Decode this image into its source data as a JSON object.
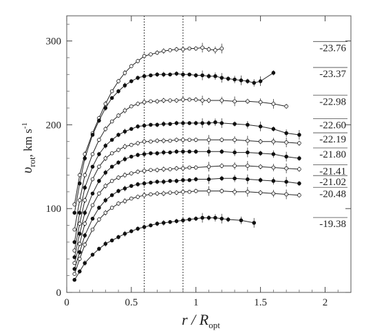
{
  "chart_data": {
    "type": "line",
    "xlabel": {
      "main": "r / R",
      "sub": "opt"
    },
    "ylabel": {
      "main": "υ",
      "sub": "rot",
      "unit": ", km s",
      "sup": "-1"
    },
    "xlim": [
      0,
      2.2
    ],
    "ylim": [
      0,
      330
    ],
    "xticks": [
      0,
      0.5,
      1,
      1.5,
      2
    ],
    "xtick_labels": [
      "0",
      "0.5",
      "1",
      "1.5",
      "2"
    ],
    "yticks": [
      0,
      100,
      200,
      300
    ],
    "ytick_labels": [
      "0",
      "100",
      "200",
      "300"
    ],
    "vlines": [
      0.6,
      0.9
    ],
    "grid": false,
    "series": [
      {
        "label": "-23.76",
        "marker": "open",
        "labelY": 292,
        "x": [
          0.06,
          0.1,
          0.14,
          0.2,
          0.25,
          0.3,
          0.35,
          0.4,
          0.45,
          0.5,
          0.55,
          0.6,
          0.65,
          0.7,
          0.75,
          0.8,
          0.85,
          0.9,
          0.95,
          1.0,
          1.05,
          1.1,
          1.15,
          1.2
        ],
        "y": [
          105,
          140,
          165,
          190,
          208,
          225,
          240,
          252,
          262,
          270,
          276,
          282,
          284,
          286,
          288,
          289,
          290,
          290,
          291,
          291,
          292,
          290,
          289,
          291
        ]
      },
      {
        "label": "-23.37",
        "marker": "filled",
        "labelY": 261,
        "x": [
          0.06,
          0.1,
          0.14,
          0.2,
          0.25,
          0.3,
          0.35,
          0.4,
          0.45,
          0.5,
          0.55,
          0.6,
          0.65,
          0.7,
          0.75,
          0.8,
          0.85,
          0.9,
          0.95,
          1.0,
          1.05,
          1.1,
          1.15,
          1.2,
          1.25,
          1.3,
          1.35,
          1.4,
          1.45,
          1.5,
          1.6
        ],
        "y": [
          95,
          130,
          160,
          188,
          205,
          220,
          232,
          240,
          247,
          252,
          256,
          258,
          259,
          260,
          260,
          260,
          261,
          260,
          260,
          259,
          259,
          258,
          258,
          256,
          255,
          254,
          253,
          252,
          250,
          252,
          262
        ]
      },
      {
        "label": "-22.98",
        "marker": "open",
        "labelY": 228,
        "x": [
          0.06,
          0.1,
          0.14,
          0.2,
          0.25,
          0.3,
          0.35,
          0.4,
          0.45,
          0.5,
          0.55,
          0.6,
          0.65,
          0.7,
          0.75,
          0.8,
          0.85,
          0.9,
          0.95,
          1.0,
          1.05,
          1.1,
          1.2,
          1.3,
          1.4,
          1.5,
          1.6,
          1.7
        ],
        "y": [
          75,
          110,
          140,
          165,
          182,
          195,
          204,
          211,
          217,
          222,
          225,
          227,
          228,
          228,
          229,
          229,
          229,
          230,
          230,
          230,
          229,
          229,
          229,
          228,
          228,
          227,
          225,
          222
        ]
      },
      {
        "label": "-22.60",
        "marker": "filled",
        "labelY": 200,
        "x": [
          0.06,
          0.1,
          0.14,
          0.2,
          0.25,
          0.3,
          0.35,
          0.4,
          0.45,
          0.5,
          0.55,
          0.6,
          0.65,
          0.7,
          0.75,
          0.8,
          0.85,
          0.9,
          0.95,
          1.0,
          1.05,
          1.1,
          1.15,
          1.2,
          1.3,
          1.4,
          1.5,
          1.6,
          1.7,
          1.8
        ],
        "y": [
          60,
          95,
          125,
          150,
          165,
          175,
          182,
          188,
          192,
          195,
          198,
          199,
          200,
          200,
          201,
          201,
          202,
          202,
          202,
          202,
          202,
          202,
          203,
          202,
          201,
          200,
          198,
          195,
          190,
          188
        ]
      },
      {
        "label": "-22.19",
        "marker": "open",
        "labelY": 183,
        "x": [
          0.06,
          0.1,
          0.14,
          0.2,
          0.25,
          0.3,
          0.35,
          0.4,
          0.45,
          0.5,
          0.55,
          0.6,
          0.65,
          0.7,
          0.75,
          0.8,
          0.85,
          0.9,
          0.95,
          1.0,
          1.1,
          1.2,
          1.3,
          1.4,
          1.5,
          1.6,
          1.7,
          1.8
        ],
        "y": [
          50,
          82,
          110,
          135,
          150,
          160,
          166,
          170,
          174,
          176,
          178,
          180,
          180,
          181,
          181,
          181,
          182,
          182,
          182,
          182,
          182,
          182,
          182,
          181,
          180,
          180,
          179,
          178
        ]
      },
      {
        "label": "-21.80",
        "marker": "filled",
        "labelY": 165,
        "x": [
          0.06,
          0.1,
          0.14,
          0.2,
          0.25,
          0.3,
          0.35,
          0.4,
          0.45,
          0.5,
          0.55,
          0.6,
          0.65,
          0.7,
          0.75,
          0.8,
          0.85,
          0.9,
          0.95,
          1.0,
          1.1,
          1.2,
          1.3,
          1.4,
          1.5,
          1.6,
          1.7,
          1.8
        ],
        "y": [
          42,
          70,
          95,
          118,
          133,
          143,
          150,
          155,
          159,
          162,
          164,
          165,
          166,
          166,
          167,
          167,
          168,
          168,
          168,
          168,
          168,
          168,
          167,
          167,
          166,
          165,
          162,
          160
        ]
      },
      {
        "label": "-21.41",
        "marker": "open",
        "labelY": 145,
        "x": [
          0.06,
          0.1,
          0.14,
          0.2,
          0.25,
          0.3,
          0.35,
          0.4,
          0.45,
          0.5,
          0.55,
          0.6,
          0.65,
          0.7,
          0.75,
          0.8,
          0.85,
          0.9,
          0.95,
          1.0,
          1.1,
          1.2,
          1.3,
          1.4,
          1.5,
          1.6,
          1.7,
          1.8
        ],
        "y": [
          35,
          58,
          82,
          104,
          118,
          127,
          133,
          137,
          140,
          142,
          144,
          145,
          146,
          146,
          147,
          147,
          148,
          148,
          149,
          149,
          150,
          151,
          151,
          151,
          150,
          149,
          148,
          147
        ]
      },
      {
        "label": "-21.02",
        "marker": "filled",
        "labelY": 132,
        "x": [
          0.06,
          0.1,
          0.14,
          0.2,
          0.25,
          0.3,
          0.35,
          0.4,
          0.45,
          0.5,
          0.55,
          0.6,
          0.65,
          0.7,
          0.75,
          0.8,
          0.85,
          0.9,
          0.95,
          1.0,
          1.1,
          1.2,
          1.3,
          1.4,
          1.5,
          1.6,
          1.7,
          1.8
        ],
        "y": [
          28,
          48,
          68,
          88,
          101,
          110,
          116,
          121,
          124,
          127,
          129,
          130,
          131,
          132,
          132,
          133,
          133,
          134,
          134,
          135,
          135,
          136,
          136,
          135,
          134,
          133,
          132,
          130
        ]
      },
      {
        "label": "-20.48",
        "marker": "open",
        "labelY": 118,
        "x": [
          0.06,
          0.1,
          0.14,
          0.2,
          0.25,
          0.3,
          0.35,
          0.4,
          0.45,
          0.5,
          0.55,
          0.6,
          0.65,
          0.7,
          0.75,
          0.8,
          0.85,
          0.9,
          0.95,
          1.0,
          1.1,
          1.2,
          1.3,
          1.4,
          1.5,
          1.6,
          1.7,
          1.8
        ],
        "y": [
          22,
          40,
          57,
          75,
          87,
          95,
          101,
          106,
          109,
          112,
          114,
          116,
          117,
          118,
          118,
          119,
          119,
          120,
          120,
          121,
          121,
          121,
          120,
          120,
          119,
          118,
          117,
          116
        ]
      },
      {
        "label": "-19.38",
        "marker": "filled",
        "labelY": 82,
        "x": [
          0.06,
          0.1,
          0.14,
          0.2,
          0.25,
          0.3,
          0.35,
          0.4,
          0.45,
          0.5,
          0.55,
          0.6,
          0.65,
          0.7,
          0.75,
          0.8,
          0.85,
          0.9,
          0.95,
          1.0,
          1.05,
          1.1,
          1.15,
          1.2,
          1.25,
          1.35,
          1.45
        ],
        "y": [
          15,
          25,
          35,
          45,
          52,
          58,
          62,
          66,
          70,
          73,
          76,
          78,
          80,
          82,
          83,
          84,
          85,
          86,
          87,
          88,
          89,
          89,
          89,
          88,
          87,
          86,
          83
        ]
      }
    ]
  }
}
